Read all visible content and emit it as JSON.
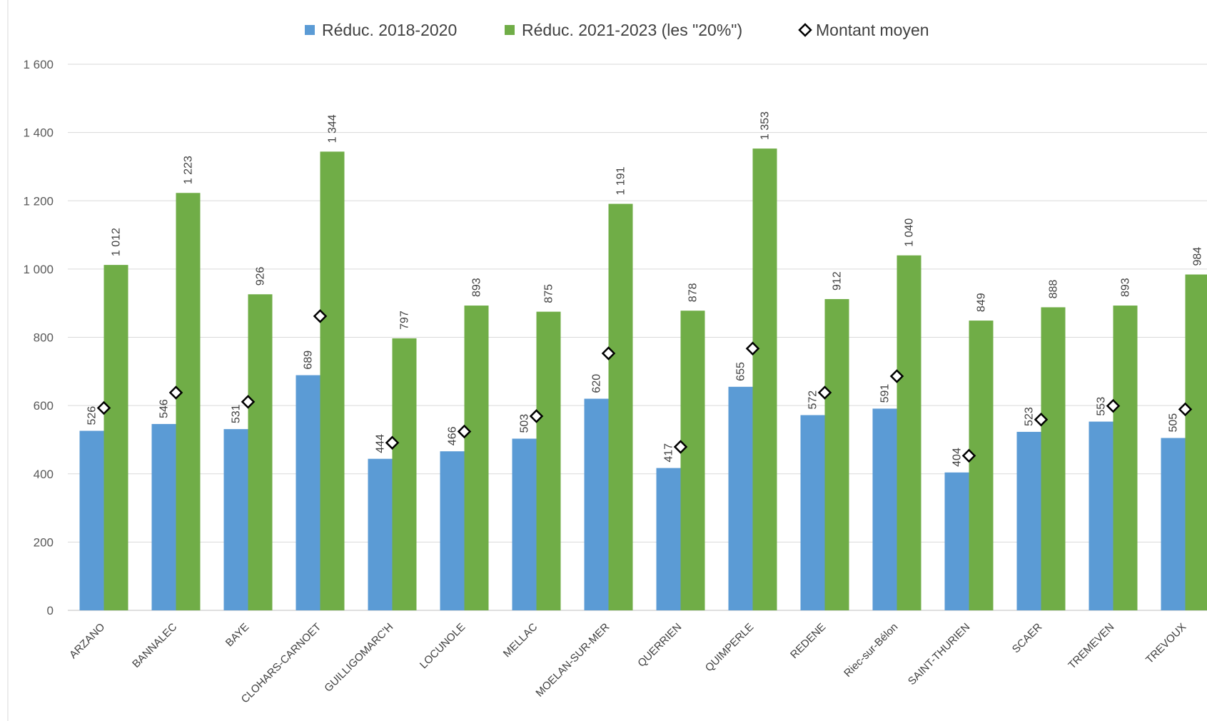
{
  "chart_data": {
    "type": "bar",
    "title": "",
    "xlabel": "",
    "ylabel": "",
    "ylim": [
      0,
      1600
    ],
    "yticks": [
      0,
      200,
      400,
      600,
      800,
      1000,
      1200,
      1400,
      1600
    ],
    "ytick_labels": [
      "0",
      "200",
      "400",
      "600",
      "800",
      "1 000",
      "1 200",
      "1 400",
      "1 600"
    ],
    "grid": true,
    "legend_position": "top",
    "categories": [
      "ARZANO",
      "BANNALEC",
      "BAYE",
      "CLOHARS-CARNOET",
      "GUILLIGOMARC'H",
      "LOCUNOLE",
      "MELLAC",
      "MOELAN-SUR-MER",
      "QUERRIEN",
      "QUIMPERLE",
      "REDENE",
      "Riec-sur-Bélon",
      "SAINT-THURIEN",
      "SCAER",
      "TREMEVEN",
      "TREVOUX"
    ],
    "series": [
      {
        "name": "Réduc. 2018-2020",
        "kind": "bar",
        "color": "#5B9BD5",
        "values": [
          526,
          546,
          531,
          689,
          444,
          466,
          503,
          620,
          417,
          655,
          572,
          591,
          404,
          523,
          553,
          505
        ],
        "labels": [
          "526",
          "546",
          "531",
          "689",
          "444",
          "466",
          "503",
          "620",
          "417",
          "655",
          "572",
          "591",
          "404",
          "523",
          "553",
          "505"
        ]
      },
      {
        "name": "Réduc. 2021-2023 (les \"20%\")",
        "kind": "bar",
        "color": "#70AD47",
        "values": [
          1012,
          1223,
          926,
          1344,
          797,
          893,
          875,
          1191,
          878,
          1353,
          912,
          1040,
          849,
          888,
          893,
          984
        ],
        "labels": [
          "1 012",
          "1 223",
          "926",
          "1 344",
          "797",
          "893",
          "875",
          "1 191",
          "878",
          "1 353",
          "912",
          "1 040",
          "849",
          "888",
          "893",
          "984"
        ]
      },
      {
        "name": "Montant moyen",
        "kind": "marker",
        "marker": "diamond",
        "color": "#000000",
        "values": [
          593,
          638,
          611,
          862,
          491,
          524,
          569,
          753,
          479,
          767,
          638,
          686,
          453,
          559,
          599,
          589
        ]
      }
    ]
  }
}
